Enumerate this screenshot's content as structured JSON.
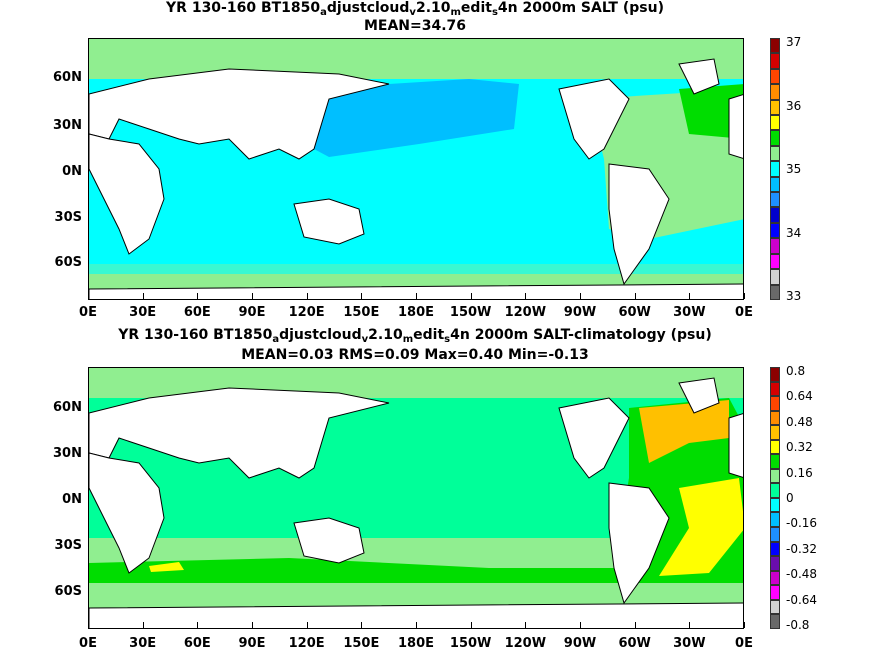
{
  "top": {
    "title_parts": [
      "YR 130-160 BT1850",
      "a",
      "djustcloud",
      "v",
      "2.10",
      "m",
      "edit",
      "s",
      "4n 2000m SALT (psu)"
    ],
    "subtitle": "MEAN=34.76",
    "colorbar_labels": [
      "37",
      "36",
      "35",
      "34",
      "33"
    ],
    "colorbar_colors": [
      "#8b0000",
      "#d40000",
      "#ff4500",
      "#ff8c00",
      "#ffc000",
      "#ffff00",
      "#00dd00",
      "#90ee90",
      "#00ffff",
      "#00bfff",
      "#1e90ff",
      "#0000cd",
      "#0000ff",
      "#cc00cc",
      "#ff00ff",
      "#d3d3d3",
      "#696969"
    ]
  },
  "bottom": {
    "title_parts": [
      "YR 130-160 BT1850",
      "a",
      "djustcloud",
      "v",
      "2.10",
      "m",
      "edit",
      "s",
      "4n 2000m SALT-climatology (psu)"
    ],
    "subtitle": "MEAN=0.03   RMS=0.09   Max=0.40   Min=-0.13",
    "colorbar_labels": [
      "0.8",
      "0.64",
      "0.48",
      "0.32",
      "0.16",
      "0",
      "-0.16",
      "-0.32",
      "-0.48",
      "-0.64",
      "-0.8"
    ],
    "colorbar_colors": [
      "#8b0000",
      "#d40000",
      "#ff4500",
      "#ff8c00",
      "#ffc000",
      "#ffff00",
      "#00dd00",
      "#90ee90",
      "#00ff99",
      "#00ffff",
      "#00bfff",
      "#1e90ff",
      "#0000ff",
      "#6a0dad",
      "#cc00cc",
      "#ff00ff",
      "#d3d3d3",
      "#696969"
    ]
  },
  "axes": {
    "lat_labels": [
      "60N",
      "30N",
      "0N",
      "30S",
      "60S"
    ],
    "lon_labels": [
      "0E",
      "30E",
      "60E",
      "90E",
      "120E",
      "150E",
      "180E",
      "150W",
      "120W",
      "90W",
      "60W",
      "30W",
      "0E"
    ]
  },
  "colors": {
    "land": "#ffffff",
    "coast": "#000000"
  }
}
